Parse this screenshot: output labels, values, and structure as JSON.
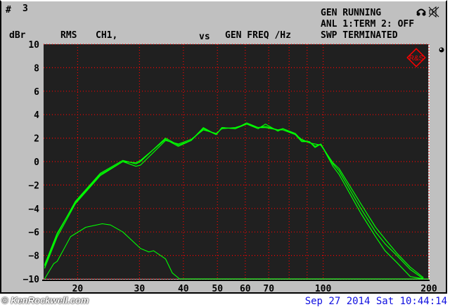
{
  "header": {
    "index_label": "#",
    "index_value": "3",
    "status_lines": [
      "GEN RUNNING",
      "ANL 1:TERM 2: OFF",
      "SWP TERMINATED"
    ],
    "measurement": "RMS",
    "channel": "CH1,",
    "vs_label": "vs",
    "x_quantity": "GEN FREQ /Hz"
  },
  "footer": {
    "watermark": "© KenRockwell.com",
    "datetime": "Sep 27 2014 Sat 10:44:14"
  },
  "icons": [
    "headphones-icon",
    "speaker-muted-icon",
    "rs-logo-icon",
    "knob-icon"
  ],
  "colors": {
    "trace": "#00ff00",
    "grid": "#ff0000",
    "plot_bg": "#202020",
    "panel_bg": "#c0c0c0",
    "datetime": "#1010e0"
  },
  "chart_data": {
    "type": "line",
    "title": "",
    "xlabel": "GEN FREQ /Hz",
    "ylabel": "dBr",
    "x_scale": "log",
    "xlim": [
      16,
      200
    ],
    "ylim": [
      -10,
      10
    ],
    "grid": true,
    "legend": "none",
    "x_ticks": [
      20,
      30,
      40,
      50,
      60,
      70,
      100,
      200
    ],
    "x_gridlines": [
      20,
      30,
      40,
      50,
      60,
      70,
      80,
      90,
      100,
      200
    ],
    "y_ticks": [
      10,
      8,
      6,
      4,
      2,
      0,
      -2,
      -4,
      -6,
      -8,
      -10
    ],
    "series": [
      {
        "x": [
          16.1,
          17.5,
          19.7,
          23.2,
          26.9,
          29.3,
          30.2,
          35.6,
          38.7,
          42.1,
          45.6,
          49.6,
          51.5,
          56.2,
          60.6,
          65.3,
          68.5,
          74.3,
          76.8,
          83.3,
          86.9,
          91.3,
          94.8,
          98.5,
          106.6,
          111,
          128,
          141,
          150,
          162,
          177,
          193
        ],
        "y": [
          -8.8,
          -6.1,
          -3.5,
          -1.1,
          0,
          -0.1,
          0.1,
          1.9,
          1.3,
          1.8,
          2.9,
          2.3,
          2.9,
          2.8,
          3.2,
          2.8,
          3.2,
          2.6,
          2.8,
          2.3,
          1.7,
          1.7,
          1.3,
          1.5,
          -0.2,
          -0.8,
          -4,
          -6,
          -7,
          -8,
          -9.2,
          -10
        ]
      },
      {
        "x": [
          16.1,
          17.5,
          19.7,
          23.2,
          26.9,
          29.3,
          30.2,
          35.6,
          38.7,
          42.1,
          45.6,
          49.6,
          51.5,
          56.2,
          60.6,
          65.3,
          68.5,
          74.3,
          76.8,
          83.3,
          86.9,
          91.3,
          94.8,
          98.5,
          106.6,
          111,
          128,
          141,
          150,
          162,
          177,
          193
        ],
        "y": [
          -9.1,
          -6.4,
          -3.6,
          -1.2,
          0,
          -0.4,
          -0.3,
          1.8,
          1.5,
          1.9,
          2.7,
          2.4,
          2.8,
          2.9,
          3.2,
          2.9,
          2.9,
          2.7,
          2.7,
          2.3,
          1.9,
          1.6,
          1.5,
          1.4,
          -0.1,
          -0.6,
          -3.6,
          -5.6,
          -6.6,
          -7.8,
          -9,
          -9.9
        ]
      },
      {
        "x": [
          16.1,
          17.5,
          19.7,
          23.2,
          26.9,
          29.3,
          30.2,
          35.6,
          38.7,
          42.1,
          45.6,
          49.6,
          51.5,
          56.2,
          60.6,
          65.3,
          68.5,
          74.3,
          76.8,
          83.3,
          86.9,
          91.3,
          94.8,
          98.5,
          106.6,
          111,
          128,
          141,
          150,
          162,
          177,
          193
        ],
        "y": [
          -8.9,
          -6.2,
          -3.4,
          -1.0,
          0.1,
          -0.2,
          0,
          2.0,
          1.4,
          1.8,
          2.8,
          2.3,
          2.9,
          2.8,
          3.3,
          2.9,
          3.0,
          2.7,
          2.8,
          2.4,
          1.8,
          1.7,
          1.2,
          1.5,
          -0.4,
          -1.1,
          -4.4,
          -6.4,
          -7.6,
          -8.6,
          -9.8,
          -10
        ]
      },
      {
        "x": [
          16.1,
          17.1,
          17.5,
          19.1,
          21.1,
          23.5,
          24.8,
          26.9,
          30.2,
          31.9,
          32.9,
          35.6,
          37.2,
          39.0,
          60,
          100,
          200
        ],
        "y": [
          -10,
          -8.7,
          -8.5,
          -6.4,
          -5.6,
          -5.3,
          -5.4,
          -6,
          -7.4,
          -7.7,
          -7.6,
          -8.3,
          -9.5,
          -10,
          -10,
          -10,
          -10
        ]
      }
    ]
  }
}
